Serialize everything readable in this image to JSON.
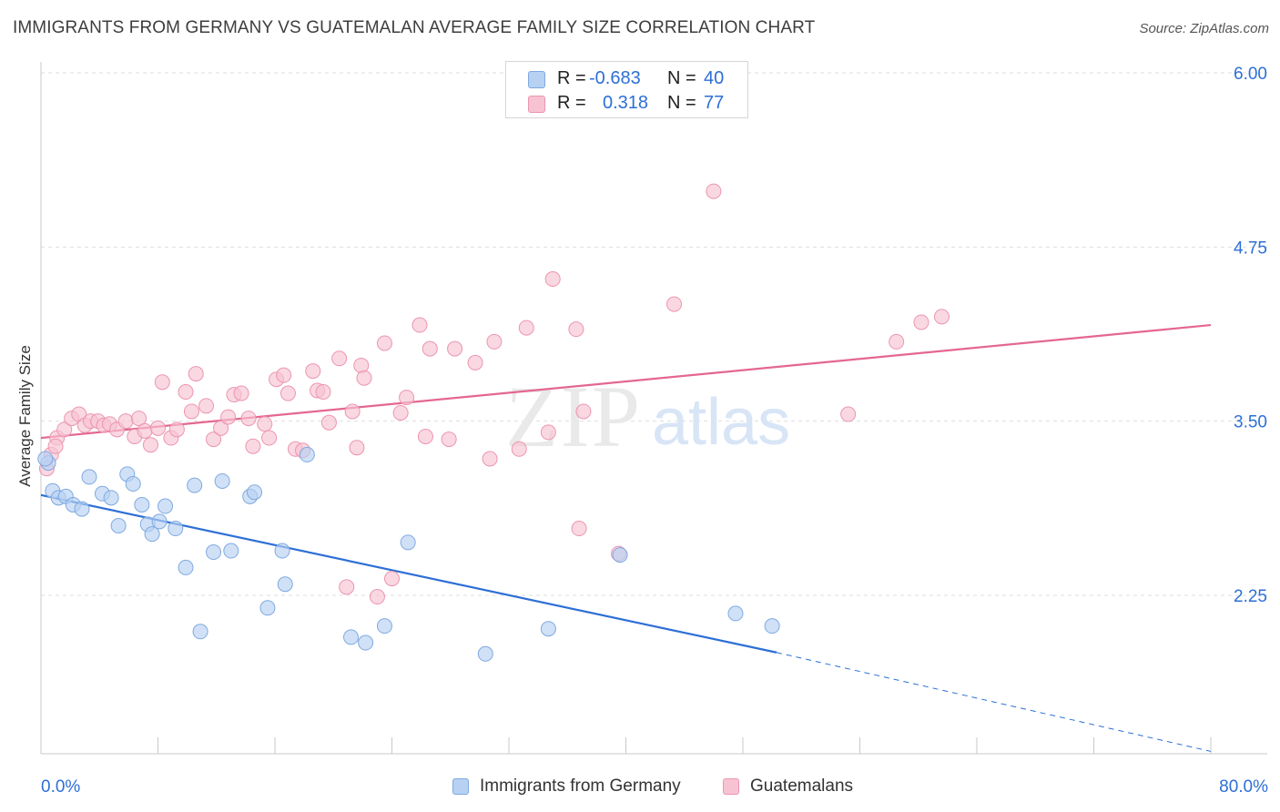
{
  "header": {
    "title": "IMMIGRANTS FROM GERMANY VS GUATEMALAN AVERAGE FAMILY SIZE CORRELATION CHART",
    "source": "Source: ZipAtlas.com"
  },
  "watermark": {
    "zip": "ZIP",
    "atlas": "atlas"
  },
  "stats_legend": {
    "rows": [
      {
        "r_label": "R =",
        "r_value": "-0.683",
        "n_label": "N =",
        "n_value": "40",
        "series": "Immigrants from Germany"
      },
      {
        "r_label": "R =",
        "r_value": "0.318",
        "n_label": "N =",
        "n_value": "77",
        "series": "Guatemalans"
      }
    ]
  },
  "axes": {
    "x_min_label": "0.0%",
    "x_max_label": "80.0%",
    "y_label": "Average Family Size",
    "y_tick_labels": [
      "6.00",
      "4.75",
      "3.50",
      "2.25"
    ]
  },
  "bottom_legend": {
    "items": [
      {
        "label": "Immigrants from Germany"
      },
      {
        "label": "Guatemalans"
      }
    ]
  },
  "colors": {
    "blue_fill": "#b7d1f3",
    "blue_stroke": "#7fa9e0",
    "blue_line": "#2d6fd6",
    "pink_fill": "#f7c3d3",
    "pink_stroke": "#ec95b1",
    "pink_line": "#e4678f",
    "tick_label": "#2d6fd6",
    "grid": "#dedede"
  },
  "chart_data": {
    "type": "scatter",
    "x_unit": "percent",
    "xlim": [
      0,
      80
    ],
    "ylim": [
      1.25,
      6.1
    ],
    "y_ticks": [
      6.0,
      4.75,
      3.5,
      2.25
    ],
    "grid": true,
    "series": [
      {
        "name": "Immigrants from Germany",
        "color": "#b7d1f3",
        "points": [
          [
            0.5,
            3.2
          ],
          [
            0.8,
            3.0
          ],
          [
            1.2,
            2.95
          ],
          [
            1.7,
            2.96
          ],
          [
            2.2,
            2.9
          ],
          [
            2.8,
            2.87
          ],
          [
            3.3,
            3.1
          ],
          [
            4.2,
            2.98
          ],
          [
            4.8,
            2.95
          ],
          [
            5.3,
            2.75
          ],
          [
            5.9,
            3.12
          ],
          [
            6.3,
            3.05
          ],
          [
            6.9,
            2.9
          ],
          [
            7.3,
            2.76
          ],
          [
            7.6,
            2.69
          ],
          [
            8.1,
            2.78
          ],
          [
            8.5,
            2.89
          ],
          [
            9.2,
            2.73
          ],
          [
            9.9,
            2.45
          ],
          [
            10.5,
            3.04
          ],
          [
            10.9,
            1.99
          ],
          [
            11.8,
            2.56
          ],
          [
            12.4,
            3.07
          ],
          [
            13.0,
            2.57
          ],
          [
            14.3,
            2.96
          ],
          [
            14.6,
            2.99
          ],
          [
            15.5,
            2.16
          ],
          [
            16.5,
            2.57
          ],
          [
            16.7,
            2.33
          ],
          [
            18.2,
            3.26
          ],
          [
            21.2,
            1.95
          ],
          [
            22.2,
            1.91
          ],
          [
            23.5,
            2.03
          ],
          [
            25.1,
            2.63
          ],
          [
            30.4,
            1.83
          ],
          [
            34.7,
            2.01
          ],
          [
            39.6,
            2.54
          ],
          [
            47.5,
            2.12
          ],
          [
            50.0,
            2.03
          ],
          [
            0.3,
            3.23
          ]
        ],
        "trend": {
          "x": [
            0,
            50.3
          ],
          "y": [
            2.97,
            1.84
          ]
        },
        "trend_dashed": {
          "x": [
            50.3,
            80
          ],
          "y": [
            1.84,
            1.13
          ]
        }
      },
      {
        "name": "Guatemalans",
        "color": "#f7c3d3",
        "points": [
          [
            0.4,
            3.16
          ],
          [
            0.7,
            3.26
          ],
          [
            1.1,
            3.38
          ],
          [
            1.6,
            3.44
          ],
          [
            2.1,
            3.52
          ],
          [
            2.6,
            3.55
          ],
          [
            3.0,
            3.47
          ],
          [
            3.4,
            3.5
          ],
          [
            3.9,
            3.5
          ],
          [
            4.3,
            3.47
          ],
          [
            4.7,
            3.48
          ],
          [
            5.2,
            3.44
          ],
          [
            5.8,
            3.5
          ],
          [
            6.4,
            3.39
          ],
          [
            6.7,
            3.52
          ],
          [
            7.1,
            3.43
          ],
          [
            7.5,
            3.33
          ],
          [
            8.0,
            3.45
          ],
          [
            8.3,
            3.78
          ],
          [
            8.9,
            3.38
          ],
          [
            9.3,
            3.44
          ],
          [
            9.9,
            3.71
          ],
          [
            10.3,
            3.57
          ],
          [
            10.6,
            3.84
          ],
          [
            11.3,
            3.61
          ],
          [
            11.8,
            3.37
          ],
          [
            12.3,
            3.45
          ],
          [
            12.8,
            3.53
          ],
          [
            13.2,
            3.69
          ],
          [
            13.7,
            3.7
          ],
          [
            14.2,
            3.52
          ],
          [
            14.5,
            3.32
          ],
          [
            15.3,
            3.48
          ],
          [
            15.6,
            3.38
          ],
          [
            16.1,
            3.8
          ],
          [
            16.6,
            3.83
          ],
          [
            16.9,
            3.7
          ],
          [
            17.4,
            3.3
          ],
          [
            17.9,
            3.29
          ],
          [
            18.6,
            3.86
          ],
          [
            18.9,
            3.72
          ],
          [
            19.3,
            3.71
          ],
          [
            19.7,
            3.49
          ],
          [
            20.4,
            3.95
          ],
          [
            21.3,
            3.57
          ],
          [
            21.6,
            3.31
          ],
          [
            21.9,
            3.9
          ],
          [
            22.1,
            3.81
          ],
          [
            23.5,
            4.06
          ],
          [
            24.0,
            2.37
          ],
          [
            24.6,
            3.56
          ],
          [
            25.0,
            3.67
          ],
          [
            25.9,
            4.19
          ],
          [
            26.3,
            3.39
          ],
          [
            26.6,
            4.02
          ],
          [
            27.9,
            3.37
          ],
          [
            28.3,
            4.02
          ],
          [
            29.7,
            3.92
          ],
          [
            30.7,
            3.23
          ],
          [
            31.0,
            4.07
          ],
          [
            32.7,
            3.3
          ],
          [
            33.2,
            4.17
          ],
          [
            34.7,
            3.42
          ],
          [
            35.0,
            4.52
          ],
          [
            36.6,
            4.16
          ],
          [
            36.8,
            2.73
          ],
          [
            37.1,
            3.57
          ],
          [
            39.5,
            2.55
          ],
          [
            43.3,
            4.34
          ],
          [
            46.0,
            5.15
          ],
          [
            55.2,
            3.55
          ],
          [
            58.5,
            4.07
          ],
          [
            60.2,
            4.21
          ],
          [
            61.6,
            4.25
          ],
          [
            20.9,
            2.31
          ],
          [
            23.0,
            2.24
          ],
          [
            1.0,
            3.32
          ]
        ],
        "trend": {
          "x": [
            0,
            80
          ],
          "y": [
            3.38,
            4.19
          ]
        }
      }
    ]
  }
}
